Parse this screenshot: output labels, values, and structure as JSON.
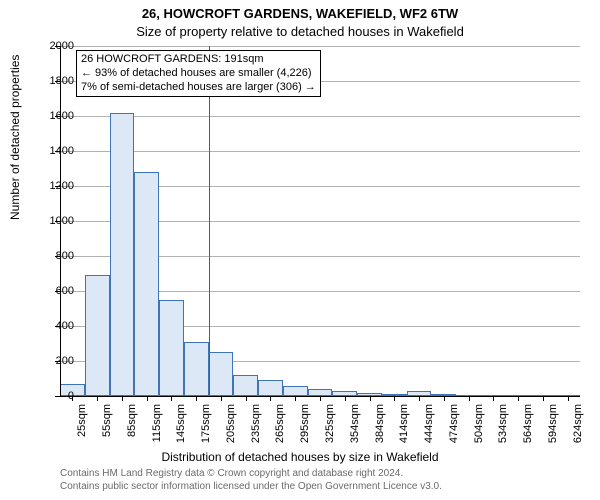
{
  "title": "26, HOWCROFT GARDENS, WAKEFIELD, WF2 6TW",
  "subtitle": "Size of property relative to detached houses in Wakefield",
  "y_axis": {
    "label": "Number of detached properties",
    "min": 0,
    "max": 2000,
    "tick_step": 200,
    "label_fontsize": 12,
    "tick_fontsize": 11
  },
  "x_axis": {
    "label": "Distribution of detached houses by size in Wakefield",
    "categories": [
      "25sqm",
      "55sqm",
      "85sqm",
      "115sqm",
      "145sqm",
      "175sqm",
      "205sqm",
      "235sqm",
      "265sqm",
      "295sqm",
      "325sqm",
      "354sqm",
      "384sqm",
      "414sqm",
      "444sqm",
      "474sqm",
      "504sqm",
      "534sqm",
      "564sqm",
      "594sqm",
      "624sqm"
    ],
    "label_fontsize": 12,
    "tick_fontsize": 11,
    "tick_rotation_deg": -90
  },
  "bars": {
    "values": [
      70,
      690,
      1620,
      1280,
      550,
      310,
      250,
      120,
      90,
      60,
      40,
      30,
      15,
      10,
      30,
      10,
      5,
      5,
      5,
      5,
      5
    ],
    "fill_color": "#dde8f6",
    "border_color": "#3f74b6",
    "bar_width_ratio": 1.0
  },
  "marker": {
    "size_sqm": 191,
    "color": "#d62728"
  },
  "annotation": {
    "line1": "26 HOWCROFT GARDENS: 191sqm",
    "line2": "← 93% of detached houses are smaller (4,226)",
    "line3": "7% of semi-detached houses are larger (306) →",
    "border_color": "#000000",
    "background_color": "#ffffff",
    "fontsize": 11
  },
  "grid": {
    "color": "#808080",
    "style": "dashed"
  },
  "background_color": "#ffffff",
  "footer": {
    "line1": "Contains HM Land Registry data © Crown copyright and database right 2024.",
    "line2": "Contains public sector information licensed under the Open Government Licence v3.0.",
    "color": "#6b6b6b",
    "fontsize": 10
  }
}
